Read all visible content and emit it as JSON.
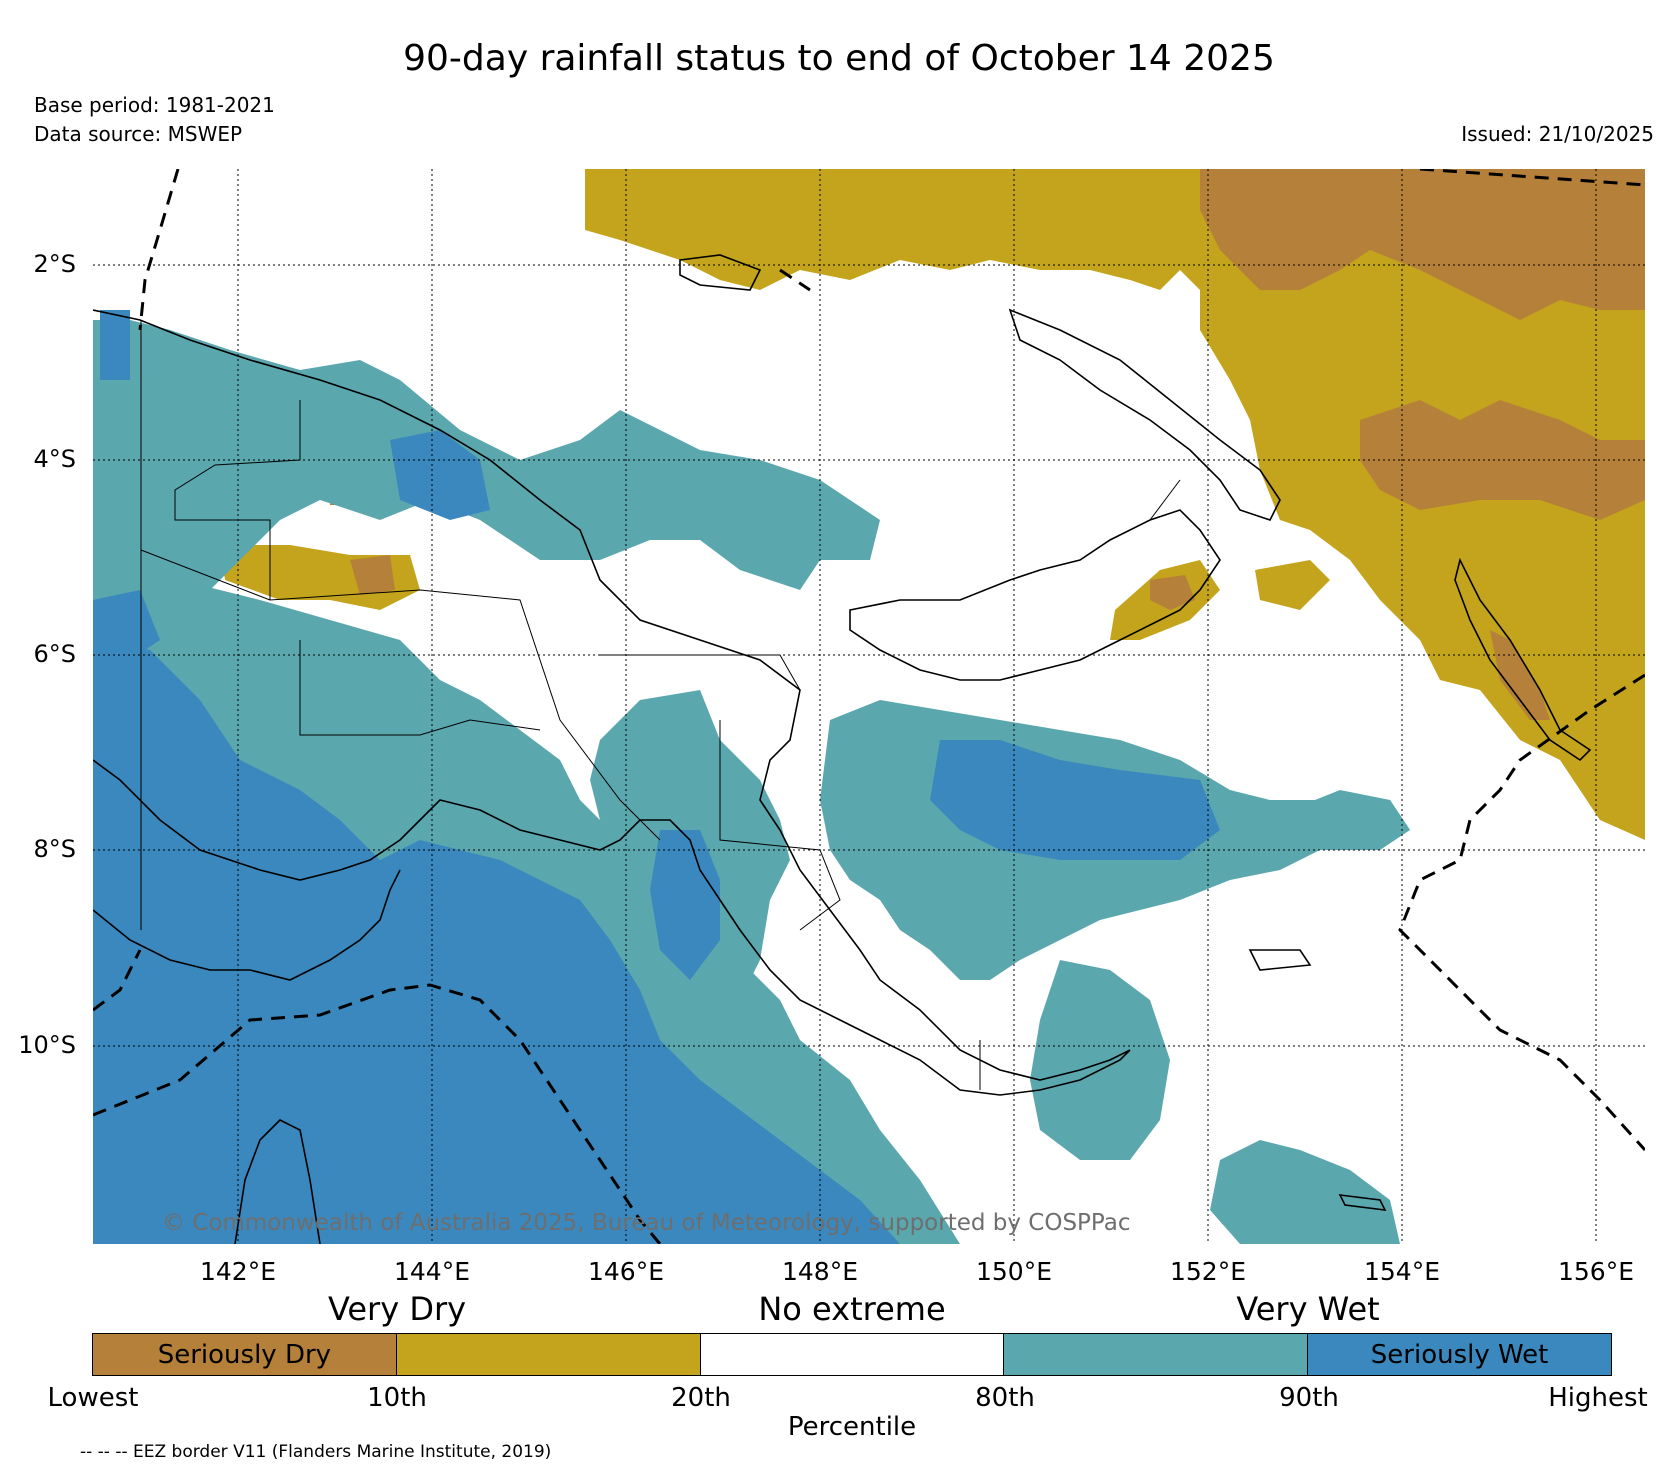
{
  "title": "90-day rainfall status to end of October 14 2025",
  "base_period": "Base period: 1981-2021",
  "data_source": "Data source: MSWEP",
  "issued": "Issued: 21/10/2025",
  "copyright": "© Commonwealth of Australia 2025, Bureau of Meteorology, supported by COSPPac",
  "lat_labels": [
    "2°S",
    "4°S",
    "6°S",
    "8°S",
    "10°S"
  ],
  "lon_labels": [
    "142°E",
    "144°E",
    "146°E",
    "148°E",
    "150°E",
    "152°E",
    "154°E",
    "156°E"
  ],
  "categories": {
    "very_dry": "Very Dry",
    "no_extreme": "No extreme",
    "very_wet": "Very Wet"
  },
  "legend": {
    "segments": [
      {
        "label": "Seriously Dry",
        "color": "#B5803A"
      },
      {
        "label": "",
        "color": "#C3A41C"
      },
      {
        "label": "",
        "color": "#FFFFFF"
      },
      {
        "label": "",
        "color": "#5BA7AE"
      },
      {
        "label": "Seriously Wet",
        "color": "#3A88BD"
      }
    ],
    "ticks": [
      "Lowest",
      "10th",
      "20th",
      "80th",
      "90th",
      "Highest"
    ],
    "axis_label": "Percentile"
  },
  "eez_note": "-- -- -- EEZ border V11 (Flanders Marine Institute, 2019)"
}
